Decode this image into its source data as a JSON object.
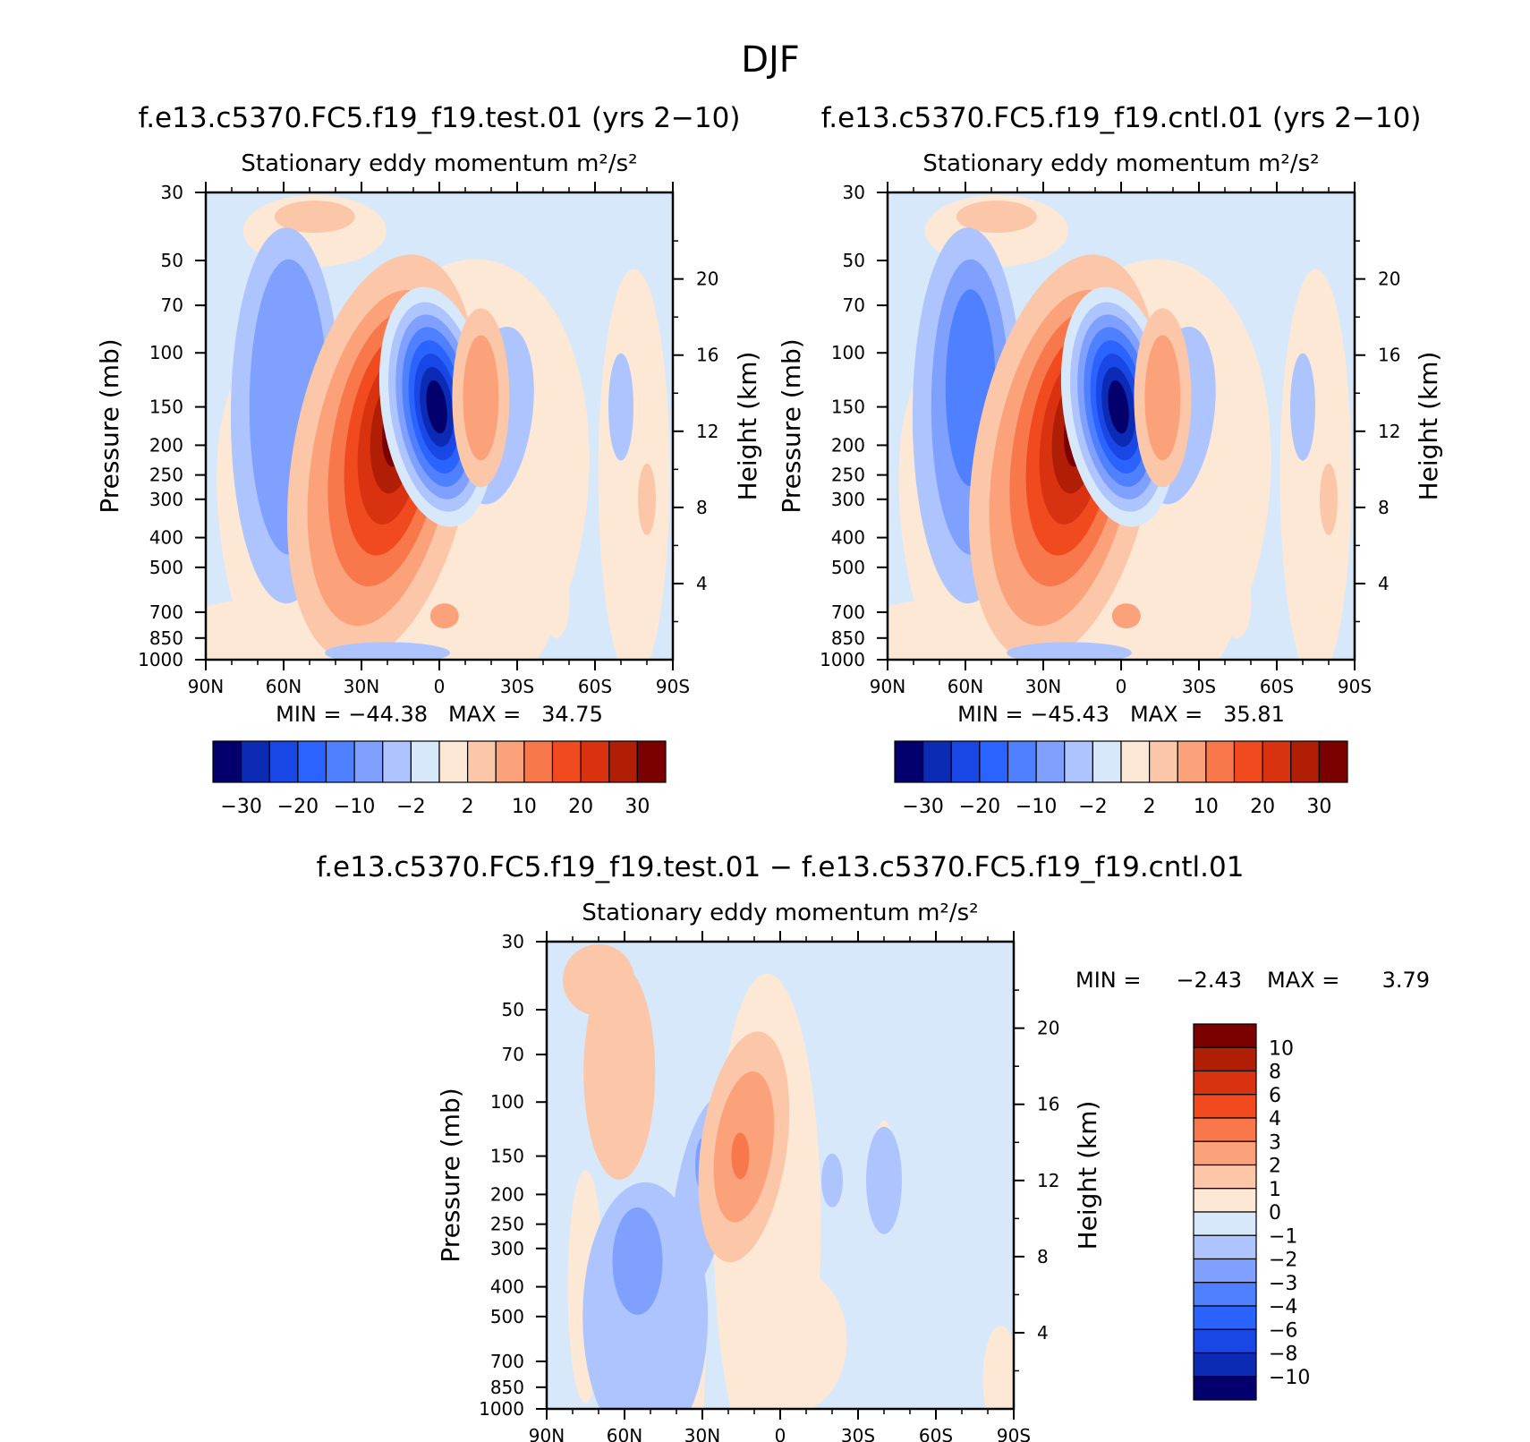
{
  "figure_title": "DJF",
  "chart_data": [
    {
      "type": "heatmap",
      "case_title": "f.e13.c5370.FC5.f19_f19.test.01 (yrs 2−10)",
      "subtitle": "Stationary eddy momentum",
      "units": "m²/s²",
      "xlabel": "",
      "ylabel": "Pressure (mb)",
      "ylabel_right": "Height (km)",
      "x_ticks": [
        "90N",
        "60N",
        "30N",
        "0",
        "30S",
        "60S",
        "90S"
      ],
      "y_ticks": [
        "30",
        "50",
        "70",
        "100",
        "150",
        "200",
        "250",
        "300",
        "400",
        "500",
        "700",
        "850",
        "1000"
      ],
      "height_ticks": [
        "20",
        "16",
        "12",
        "8",
        "4"
      ],
      "min": "−44.38",
      "max": "34.75",
      "stats_text": "MIN = −44.38   MAX =   34.75",
      "colorbar_labels": [
        "−30",
        "−20",
        "−10",
        "−2",
        "2",
        "10",
        "20",
        "30"
      ],
      "colorbar_colors": [
        "#03006e",
        "#0b2bb4",
        "#1947e6",
        "#2a63ff",
        "#4f80ff",
        "#7fa0ff",
        "#adc4ff",
        "#d8e8fb",
        "#fde8d6",
        "#fcc6a8",
        "#fba27a",
        "#f8784c",
        "#f24a1f",
        "#d83210",
        "#b01e06",
        "#7b0000"
      ],
      "features": [
        {
          "shape": "negative lobe",
          "lat_center": -52,
          "pressure_center": 150,
          "value": -12
        },
        {
          "shape": "positive jet",
          "lat_center": -22,
          "pressure_center": 220,
          "value": 34.75
        },
        {
          "shape": "negative jet",
          "lat_center": -1,
          "pressure_center": 150,
          "value": -44.38
        },
        {
          "shape": "positive lobe",
          "lat_center": 16,
          "pressure_center": 130,
          "value": 6
        }
      ]
    },
    {
      "type": "heatmap",
      "case_title": "f.e13.c5370.FC5.f19_f19.cntl.01 (yrs 2−10)",
      "subtitle": "Stationary eddy momentum",
      "units": "m²/s²",
      "xlabel": "",
      "ylabel": "Pressure (mb)",
      "ylabel_right": "Height (km)",
      "x_ticks": [
        "90N",
        "60N",
        "30N",
        "0",
        "30S",
        "60S",
        "90S"
      ],
      "y_ticks": [
        "30",
        "50",
        "70",
        "100",
        "150",
        "200",
        "250",
        "300",
        "400",
        "500",
        "700",
        "850",
        "1000"
      ],
      "height_ticks": [
        "20",
        "16",
        "12",
        "8",
        "4"
      ],
      "min": "−45.43",
      "max": "35.81",
      "stats_text": "MIN = −45.43   MAX =   35.81",
      "colorbar_labels": [
        "−30",
        "−20",
        "−10",
        "−2",
        "2",
        "10",
        "20",
        "30"
      ],
      "colorbar_colors": [
        "#03006e",
        "#0b2bb4",
        "#1947e6",
        "#2a63ff",
        "#4f80ff",
        "#7fa0ff",
        "#adc4ff",
        "#d8e8fb",
        "#fde8d6",
        "#fcc6a8",
        "#fba27a",
        "#f8784c",
        "#f24a1f",
        "#d83210",
        "#b01e06",
        "#7b0000"
      ],
      "features": [
        {
          "shape": "negative lobe",
          "lat_center": -52,
          "pressure_center": 150,
          "value": -14
        },
        {
          "shape": "positive jet",
          "lat_center": -22,
          "pressure_center": 220,
          "value": 35.81
        },
        {
          "shape": "negative jet",
          "lat_center": -1,
          "pressure_center": 150,
          "value": -45.43
        },
        {
          "shape": "positive lobe",
          "lat_center": 16,
          "pressure_center": 130,
          "value": 6
        }
      ]
    },
    {
      "type": "heatmap",
      "case_title": "f.e13.c5370.FC5.f19_f19.test.01 − f.e13.c5370.FC5.f19_f19.cntl.01",
      "subtitle": "Stationary eddy momentum",
      "units": "m²/s²",
      "xlabel": "",
      "ylabel": "Pressure (mb)",
      "ylabel_right": "Height (km)",
      "x_ticks": [
        "90N",
        "60N",
        "30N",
        "0",
        "30S",
        "60S",
        "90S"
      ],
      "y_ticks": [
        "30",
        "50",
        "70",
        "100",
        "150",
        "200",
        "250",
        "300",
        "400",
        "500",
        "700",
        "850",
        "1000"
      ],
      "height_ticks": [
        "20",
        "16",
        "12",
        "8",
        "4"
      ],
      "min": "−2.43",
      "max": "3.79",
      "min_label": "MIN =",
      "min_value": "−2.43",
      "max_label": "MAX =",
      "max_value": "3.79",
      "colorbar_labels": [
        "10",
        "8",
        "6",
        "4",
        "3",
        "2",
        "1",
        "0",
        "−1",
        "−2",
        "−3",
        "−4",
        "−6",
        "−8",
        "−10"
      ],
      "colorbar_colors": [
        "#7b0000",
        "#b01e06",
        "#d83210",
        "#f24a1f",
        "#f8784c",
        "#fba27a",
        "#fcc6a8",
        "#fde8d6",
        "#d8e8fb",
        "#adc4ff",
        "#7fa0ff",
        "#4f80ff",
        "#2a63ff",
        "#1947e6",
        "#0b2bb4",
        "#03006e"
      ],
      "features": [
        {
          "shape": "positive lobe",
          "lat_center": -58,
          "pressure_center": 80,
          "value": 1.5
        },
        {
          "shape": "negative lobe",
          "lat_center": -55,
          "pressure_center": 350,
          "value": -2.43
        },
        {
          "shape": "positive jet",
          "lat_center": -12,
          "pressure_center": 140,
          "value": 3.79
        },
        {
          "shape": "negative lobe",
          "lat_center": -30,
          "pressure_center": 200,
          "value": -1.5
        }
      ]
    }
  ]
}
